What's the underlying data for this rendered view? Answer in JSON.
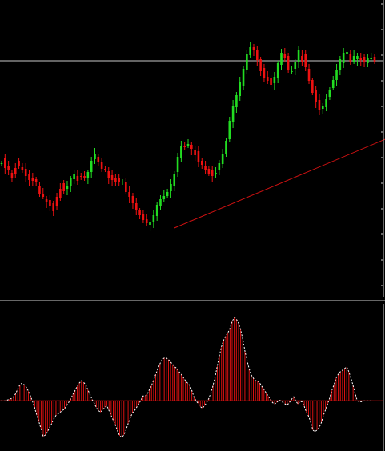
{
  "colors": {
    "background": "#000000",
    "bull_candle": "#22dd22",
    "bear_candle": "#ee1111",
    "price_line": "#c8c8c8",
    "trendline": "#cc1111",
    "histogram": "#dd1111",
    "signal_line": "#ffffff",
    "zero_line": "#dd1111",
    "frame": "#d0d0d0"
  },
  "chart_data": [
    {
      "type": "candlestick",
      "title": "",
      "xlabel": "",
      "ylabel": "",
      "ylim": [
        0,
        370
      ],
      "grid": false,
      "current_price_level": 296,
      "trendline": {
        "from": [
          50,
          87
        ],
        "to": [
          154,
          276
        ]
      },
      "open_close": [
        [
          168,
          168
        ],
        [
          175,
          162
        ],
        [
          164,
          160
        ],
        [
          156,
          150
        ],
        [
          162,
          155
        ],
        [
          171,
          165
        ],
        [
          163,
          159
        ],
        [
          161,
          152
        ],
        [
          155,
          147
        ],
        [
          150,
          146
        ],
        [
          148,
          145
        ],
        [
          140,
          130
        ],
        [
          130,
          126
        ],
        [
          123,
          120
        ],
        [
          122,
          115
        ],
        [
          118,
          108
        ],
        [
          126,
          114
        ],
        [
          136,
          125
        ],
        [
          143,
          133
        ],
        [
          136,
          140
        ],
        [
          139,
          149
        ],
        [
          148,
          154
        ],
        [
          152,
          146
        ],
        [
          152,
          151
        ],
        [
          152,
          149
        ],
        [
          150,
          157
        ],
        [
          157,
          171
        ],
        [
          173,
          180
        ],
        [
          176,
          169
        ],
        [
          169,
          161
        ],
        [
          161,
          160
        ],
        [
          158,
          150
        ],
        [
          153,
          147
        ],
        [
          150,
          145
        ],
        [
          149,
          144
        ],
        [
          145,
          145
        ],
        [
          144,
          132
        ],
        [
          132,
          126
        ],
        [
          127,
          118
        ],
        [
          118,
          109
        ],
        [
          109,
          103
        ],
        [
          105,
          97
        ],
        [
          98,
          93
        ],
        [
          91,
          94
        ],
        [
          94,
          103
        ],
        [
          102,
          116
        ],
        [
          114,
          123
        ],
        [
          123,
          127
        ],
        [
          127,
          132
        ],
        [
          133,
          142
        ],
        [
          140,
          155
        ],
        [
          157,
          176
        ],
        [
          175,
          189
        ],
        [
          190,
          188
        ],
        [
          190,
          192
        ],
        [
          191,
          186
        ],
        [
          185,
          178
        ],
        [
          183,
          169
        ],
        [
          171,
          166
        ],
        [
          165,
          159
        ],
        [
          161,
          155
        ],
        [
          159,
          152
        ],
        [
          156,
          156
        ],
        [
          159,
          168
        ],
        [
          167,
          180
        ],
        [
          180,
          196
        ],
        [
          198,
          221
        ],
        [
          220,
          240
        ],
        [
          238,
          253
        ],
        [
          252,
          270
        ],
        [
          265,
          286
        ],
        [
          284,
          304
        ],
        [
          303,
          313
        ],
        [
          313,
          310
        ],
        [
          309,
          297
        ],
        [
          298,
          283
        ],
        [
          287,
          275
        ],
        [
          276,
          271
        ],
        [
          274,
          266
        ],
        [
          268,
          276
        ],
        [
          275,
          293
        ],
        [
          291,
          306
        ],
        [
          305,
          299
        ],
        [
          302,
          285
        ],
        [
          282,
          283
        ],
        [
          286,
          295
        ],
        [
          294,
          309
        ],
        [
          302,
          295
        ],
        [
          305,
          288
        ],
        [
          286,
          271
        ],
        [
          272,
          256
        ],
        [
          259,
          245
        ],
        [
          247,
          235
        ],
        [
          236,
          239
        ],
        [
          238,
          248
        ],
        [
          251,
          260
        ],
        [
          262,
          272
        ],
        [
          272,
          285
        ],
        [
          285,
          298
        ],
        [
          293,
          306
        ],
        [
          305,
          307
        ],
        [
          304,
          295
        ],
        [
          295,
          302
        ],
        [
          298,
          302
        ],
        [
          300,
          297
        ],
        [
          301,
          294
        ],
        [
          293,
          300
        ],
        [
          299,
          299
        ],
        [
          301,
          295
        ]
      ]
    },
    {
      "type": "bar",
      "title": "",
      "xlabel": "",
      "ylabel": "",
      "ylim": [
        -50,
        110
      ],
      "grid": false,
      "values": [
        0,
        0,
        0,
        1,
        2,
        3,
        5,
        9,
        15,
        20,
        22,
        20,
        17,
        12,
        6,
        -1,
        -9,
        -18,
        -26,
        -35,
        -44,
        -42,
        -38,
        -33,
        -28,
        -22,
        -18,
        -16,
        -14,
        -12,
        -10,
        -6,
        -2,
        3,
        8,
        13,
        18,
        22,
        25,
        23,
        20,
        14,
        8,
        2,
        -3,
        -8,
        -12,
        -14,
        -11,
        -8,
        -6,
        -12,
        -18,
        -24,
        -30,
        -37,
        -43,
        -45,
        -42,
        -36,
        -28,
        -21,
        -15,
        -12,
        -8,
        -4,
        1,
        6,
        6,
        8,
        14,
        19,
        26,
        33,
        40,
        46,
        51,
        53,
        53,
        51,
        48,
        45,
        42,
        40,
        36,
        33,
        29,
        25,
        22,
        19,
        13,
        5,
        0,
        -3,
        -7,
        -9,
        -6,
        -2,
        3,
        10,
        19,
        30,
        43,
        56,
        67,
        75,
        80,
        84,
        90,
        98,
        103,
        101,
        96,
        88,
        76,
        62,
        50,
        40,
        32,
        28,
        25,
        25,
        22,
        18,
        14,
        10,
        6,
        2,
        -2,
        -4,
        -2,
        1,
        0,
        -2,
        -4,
        -5,
        -2,
        2,
        5,
        0,
        -4,
        -1,
        -1,
        -7,
        -14,
        -19,
        -26,
        -36,
        -38,
        -36,
        -33,
        -27,
        -18,
        -11,
        -4,
        4,
        13,
        20,
        28,
        33,
        36,
        38,
        40,
        42,
        36,
        28,
        19,
        9,
        0,
        -1,
        -1,
        0,
        0,
        0,
        0,
        0
      ]
    }
  ]
}
